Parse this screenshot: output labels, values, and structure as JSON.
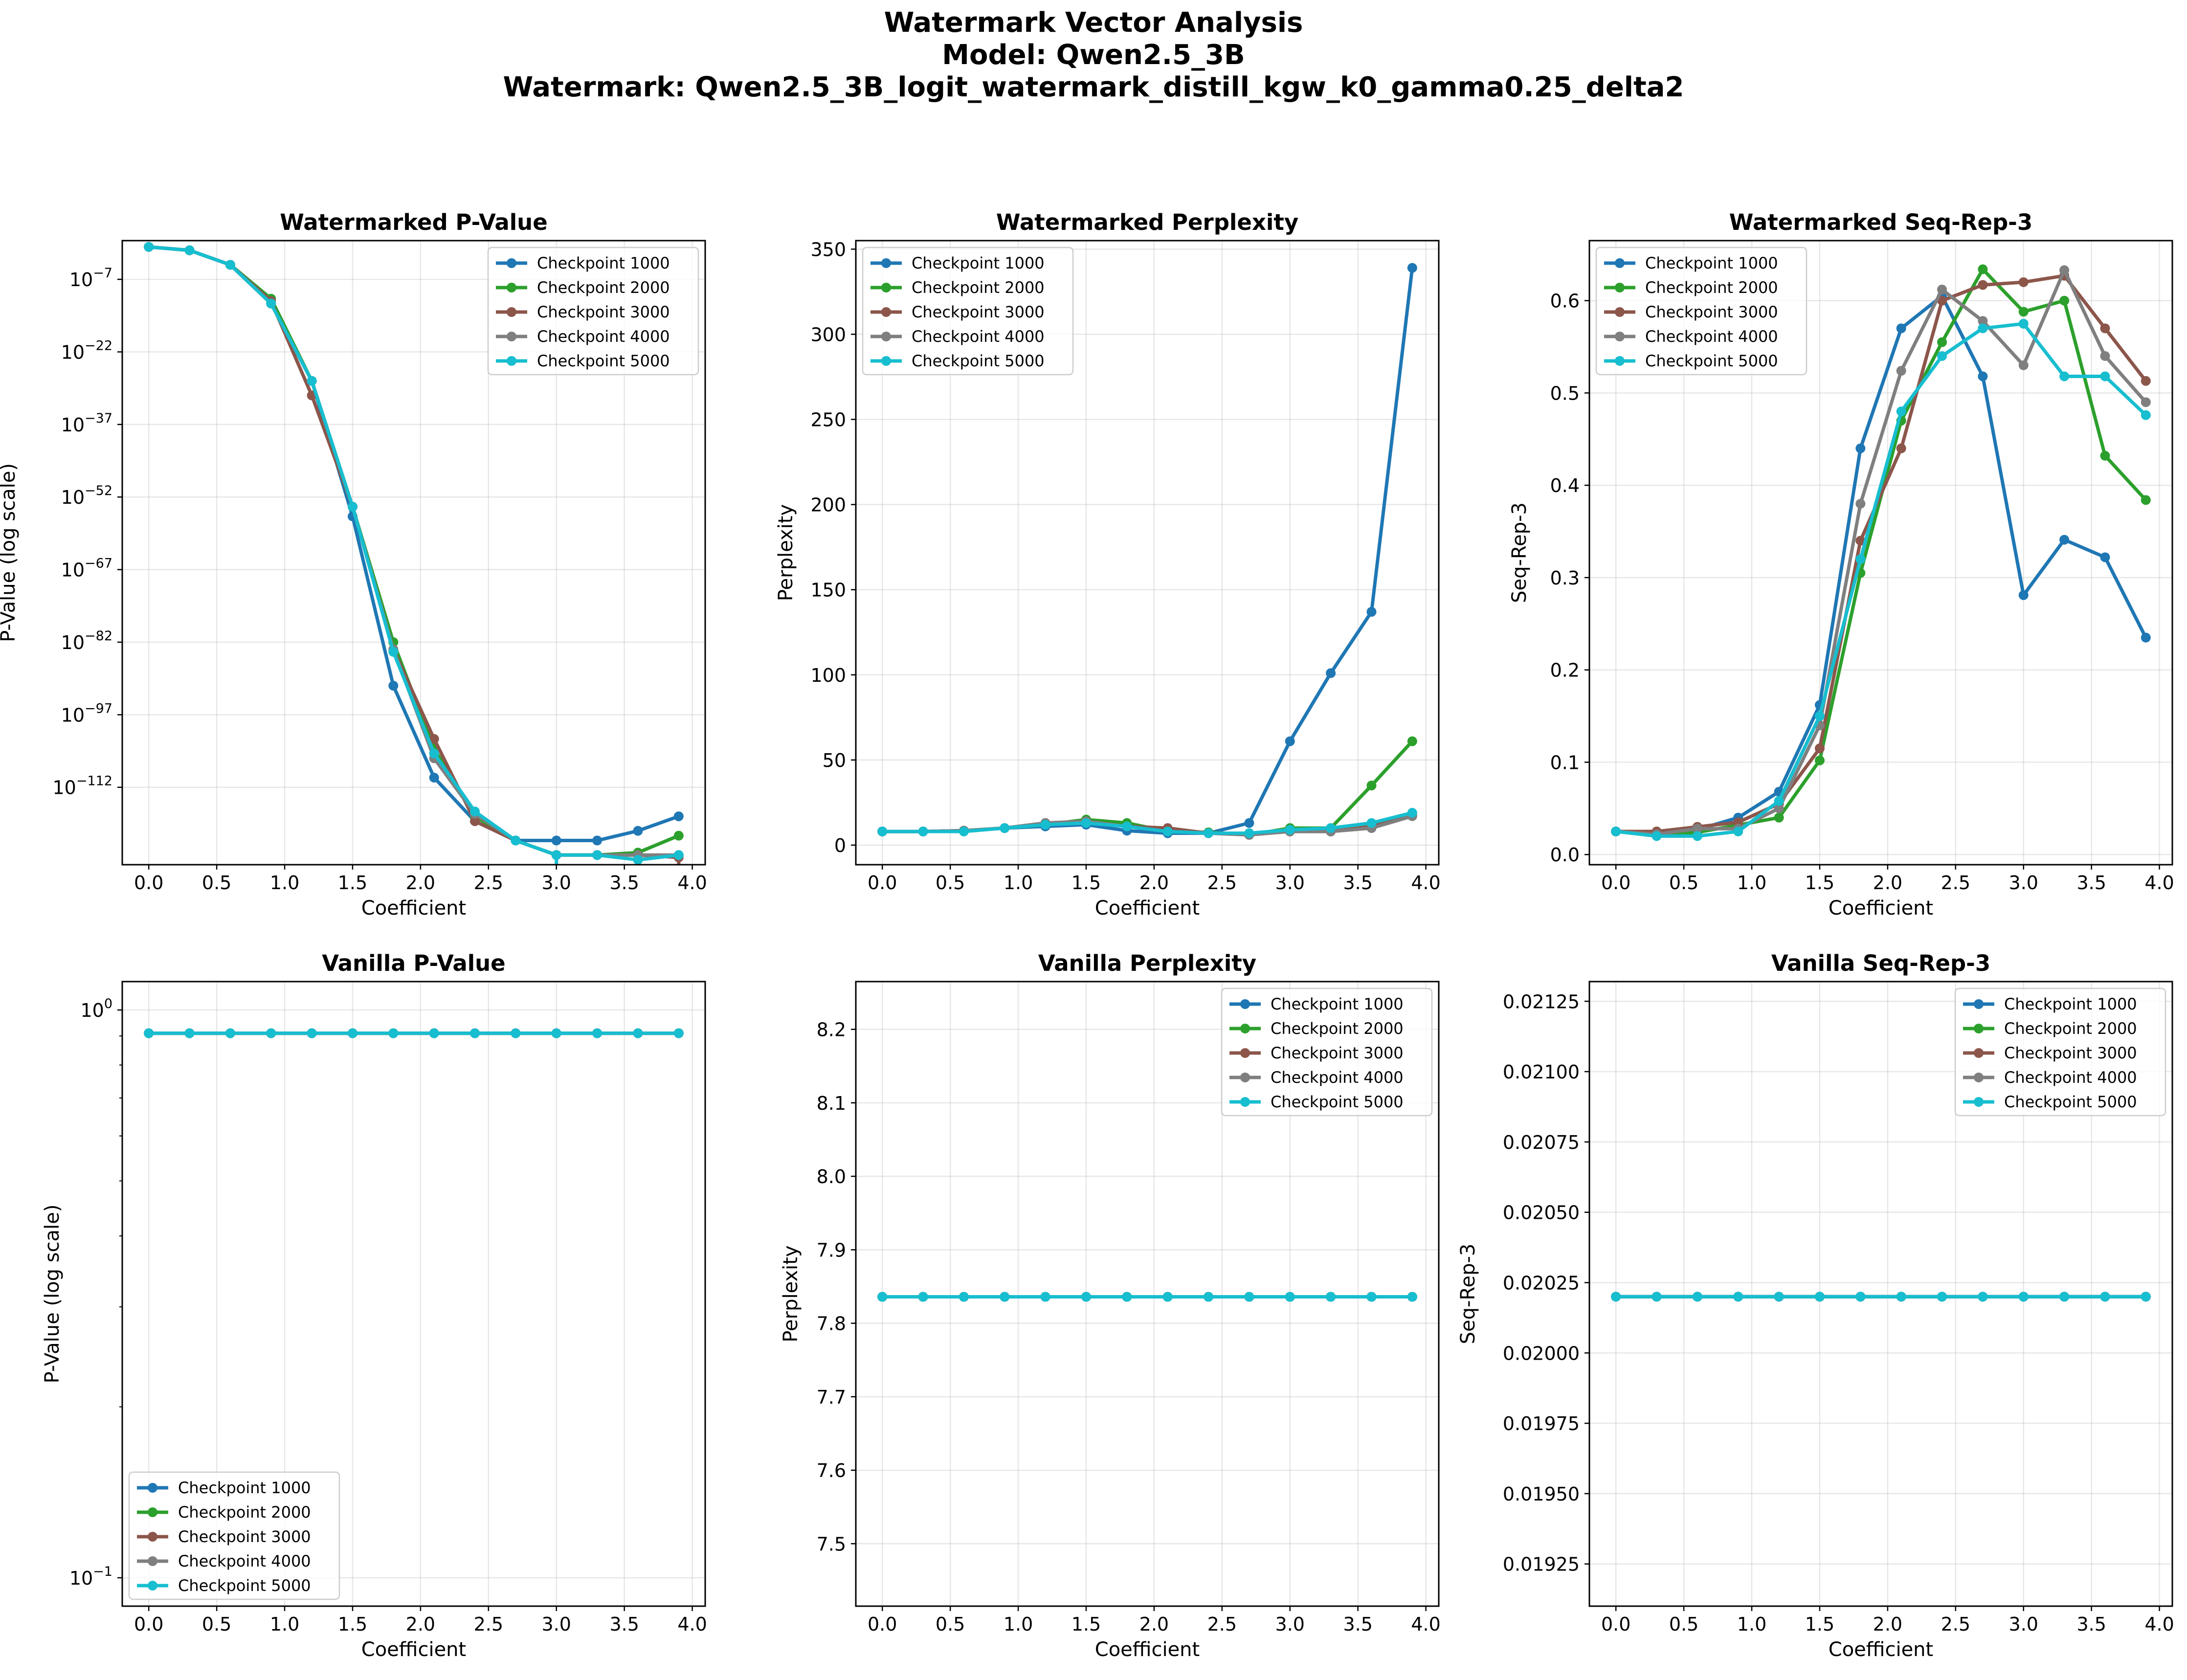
{
  "figure": {
    "title_lines": [
      "Watermark Vector Analysis",
      "Model: Qwen2.5_3B",
      "Watermark: Qwen2.5_3B_logit_watermark_distill_kgw_k0_gamma0.25_delta2"
    ]
  },
  "legend_labels": [
    "Checkpoint 1000",
    "Checkpoint 2000",
    "Checkpoint 3000",
    "Checkpoint 4000",
    "Checkpoint 5000"
  ],
  "series_colors": [
    "#1f77b4",
    "#2ca02c",
    "#8c564b",
    "#7f7f7f",
    "#17becf"
  ],
  "chart_data": [
    {
      "type": "line",
      "title": "Watermarked P-Value",
      "xlabel": "Coefficient",
      "ylabel": "P-Value (log scale)",
      "yscale": "log",
      "legend": "upper right",
      "grid": true,
      "xlim": [
        -0.195,
        4.095
      ],
      "xticks": [
        0.0,
        0.5,
        1.0,
        1.5,
        2.0,
        2.5,
        3.0,
        3.5,
        4.0
      ],
      "xticklabels": [
        "0.0",
        "0.5",
        "1.0",
        "1.5",
        "2.0",
        "2.5",
        "3.0",
        "3.5",
        "4.0"
      ],
      "ylim_log10": [
        -128,
        1
      ],
      "yticks_log10": [
        -7,
        -22,
        -37,
        -52,
        -67,
        -82,
        -97,
        -112
      ],
      "yticklabels": [
        {
          "base": "10",
          "exp": "−7"
        },
        {
          "base": "10",
          "exp": "−22"
        },
        {
          "base": "10",
          "exp": "−37"
        },
        {
          "base": "10",
          "exp": "−52"
        },
        {
          "base": "10",
          "exp": "−67"
        },
        {
          "base": "10",
          "exp": "−82"
        },
        {
          "base": "10",
          "exp": "−97"
        },
        {
          "base": "10",
          "exp": "−112"
        }
      ],
      "x": [
        0.0,
        0.3,
        0.6,
        0.9,
        1.2,
        1.5,
        1.8,
        2.1,
        2.4,
        2.7,
        3.0,
        3.3,
        3.6,
        3.9
      ],
      "series": [
        {
          "name": "Checkpoint 1000",
          "log10_values": [
            -0.3,
            -1.0,
            -4.0,
            -12.0,
            -28.0,
            -56.0,
            -91.0,
            -110.0,
            -119.0,
            -123.0,
            -123.0,
            -123.0,
            -121.0,
            -118.0
          ]
        },
        {
          "name": "Checkpoint 2000",
          "log10_values": [
            -0.3,
            -1.0,
            -4.0,
            -11.0,
            -28.0,
            -54.0,
            -82.0,
            -104.0,
            -118.0,
            -123.0,
            -126.0,
            -126.0,
            -125.5,
            -122.0
          ]
        },
        {
          "name": "Checkpoint 3000",
          "log10_values": [
            -0.3,
            -1.0,
            -4.0,
            -11.5,
            -31.0,
            -54.0,
            -83.5,
            -102.0,
            -119.0,
            -123.0,
            -126.0,
            -126.0,
            -126.0,
            -126.5
          ],
          "drop_last": true
        },
        {
          "name": "Checkpoint 4000",
          "log10_values": [
            -0.3,
            -1.0,
            -4.0,
            -12.0,
            -28.0,
            -54.0,
            -83.5,
            -106.0,
            -117.5,
            -123.0,
            -126.0,
            -126.0,
            -126.0,
            -126.0
          ]
        },
        {
          "name": "Checkpoint 5000",
          "log10_values": [
            -0.3,
            -1.0,
            -4.0,
            -12.0,
            -28.0,
            -54.0,
            -84.0,
            -105.0,
            -117.0,
            -123.0,
            -126.0,
            -126.0,
            -127.0,
            -126.0
          ],
          "drop_at": [
            3.0,
            3.6
          ]
        }
      ]
    },
    {
      "type": "line",
      "title": "Watermarked Perplexity",
      "xlabel": "Coefficient",
      "ylabel": "Perplexity",
      "yscale": "linear",
      "legend": "upper left",
      "grid": true,
      "xlim": [
        -0.195,
        4.095
      ],
      "xticks": [
        0.0,
        0.5,
        1.0,
        1.5,
        2.0,
        2.5,
        3.0,
        3.5,
        4.0
      ],
      "xticklabels": [
        "0.0",
        "0.5",
        "1.0",
        "1.5",
        "2.0",
        "2.5",
        "3.0",
        "3.5",
        "4.0"
      ],
      "ylim": [
        -11.5,
        355
      ],
      "yticks": [
        0,
        50,
        100,
        150,
        200,
        250,
        300,
        350
      ],
      "yticklabels": [
        "0",
        "50",
        "100",
        "150",
        "200",
        "250",
        "300",
        "350"
      ],
      "x": [
        0.0,
        0.3,
        0.6,
        0.9,
        1.2,
        1.5,
        1.8,
        2.1,
        2.4,
        2.7,
        3.0,
        3.3,
        3.6,
        3.9
      ],
      "series": [
        {
          "name": "Checkpoint 1000",
          "values": [
            8,
            8,
            8.5,
            10,
            11,
            12,
            8.5,
            7,
            7,
            13,
            61,
            101,
            137,
            339
          ]
        },
        {
          "name": "Checkpoint 2000",
          "values": [
            8,
            8,
            8.5,
            10,
            12,
            15,
            13,
            8,
            7.5,
            6,
            10,
            10,
            35,
            61
          ]
        },
        {
          "name": "Checkpoint 3000",
          "values": [
            8,
            8,
            8.5,
            10,
            13,
            14,
            11,
            10,
            7,
            6.5,
            8,
            8,
            11,
            18
          ]
        },
        {
          "name": "Checkpoint 4000",
          "values": [
            8,
            8,
            8.5,
            10,
            13,
            14,
            11,
            8,
            7,
            6,
            8,
            8,
            10,
            17
          ]
        },
        {
          "name": "Checkpoint 5000",
          "values": [
            8,
            8,
            8,
            10,
            12,
            13,
            11,
            8,
            7,
            7,
            9,
            10,
            13,
            19
          ]
        }
      ]
    },
    {
      "type": "line",
      "title": "Watermarked Seq-Rep-3",
      "xlabel": "Coefficient",
      "ylabel": "Seq-Rep-3",
      "yscale": "linear",
      "legend": "upper left",
      "grid": true,
      "xlim": [
        -0.195,
        4.095
      ],
      "xticks": [
        0.0,
        0.5,
        1.0,
        1.5,
        2.0,
        2.5,
        3.0,
        3.5,
        4.0
      ],
      "xticklabels": [
        "0.0",
        "0.5",
        "1.0",
        "1.5",
        "2.0",
        "2.5",
        "3.0",
        "3.5",
        "4.0"
      ],
      "ylim": [
        -0.011,
        0.665
      ],
      "yticks": [
        0.0,
        0.1,
        0.2,
        0.3,
        0.4,
        0.5,
        0.6
      ],
      "yticklabels": [
        "0.0",
        "0.1",
        "0.2",
        "0.3",
        "0.4",
        "0.5",
        "0.6"
      ],
      "x": [
        0.0,
        0.3,
        0.6,
        0.9,
        1.2,
        1.5,
        1.8,
        2.1,
        2.4,
        2.7,
        3.0,
        3.3,
        3.6,
        3.9
      ],
      "series": [
        {
          "name": "Checkpoint 1000",
          "values": [
            0.025,
            0.022,
            0.027,
            0.04,
            0.068,
            0.162,
            0.44,
            0.57,
            0.605,
            0.518,
            0.281,
            0.341,
            0.322,
            0.235
          ]
        },
        {
          "name": "Checkpoint 2000",
          "values": [
            0.025,
            0.022,
            0.024,
            0.032,
            0.04,
            0.102,
            0.305,
            0.47,
            0.555,
            0.634,
            0.588,
            0.6,
            0.432,
            0.384
          ]
        },
        {
          "name": "Checkpoint 3000",
          "values": [
            0.025,
            0.025,
            0.03,
            0.035,
            0.055,
            0.115,
            0.34,
            0.44,
            0.6,
            0.617,
            0.62,
            0.627,
            0.57,
            0.513
          ]
        },
        {
          "name": "Checkpoint 4000",
          "values": [
            0.025,
            0.022,
            0.028,
            0.028,
            0.05,
            0.14,
            0.38,
            0.524,
            0.612,
            0.578,
            0.53,
            0.633,
            0.54,
            0.49
          ]
        },
        {
          "name": "Checkpoint 5000",
          "values": [
            0.025,
            0.02,
            0.02,
            0.025,
            0.058,
            0.15,
            0.32,
            0.48,
            0.54,
            0.57,
            0.575,
            0.518,
            0.518,
            0.476
          ]
        }
      ]
    },
    {
      "type": "line",
      "title": "Vanilla P-Value",
      "xlabel": "Coefficient",
      "ylabel": "P-Value (log scale)",
      "yscale": "log",
      "legend": "lower left",
      "grid": true,
      "xlim": [
        -0.195,
        4.095
      ],
      "xticks": [
        0.0,
        0.5,
        1.0,
        1.5,
        2.0,
        2.5,
        3.0,
        3.5,
        4.0
      ],
      "xticklabels": [
        "0.0",
        "0.5",
        "1.0",
        "1.5",
        "2.0",
        "2.5",
        "3.0",
        "3.5",
        "4.0"
      ],
      "ylim_log10": [
        -1.05,
        0.05
      ],
      "yticks_log10": [
        0,
        -1
      ],
      "yticklabels": [
        {
          "base": "10",
          "exp": "0"
        },
        {
          "base": "10",
          "exp": "−1"
        }
      ],
      "x": [
        0.0,
        0.3,
        0.6,
        0.9,
        1.2,
        1.5,
        1.8,
        2.1,
        2.4,
        2.7,
        3.0,
        3.3,
        3.6,
        3.9
      ],
      "series": [
        {
          "name": "Checkpoint 1000",
          "values": [
            0.91,
            0.91,
            0.91,
            0.91,
            0.91,
            0.91,
            0.91,
            0.91,
            0.91,
            0.91,
            0.91,
            0.91,
            0.91,
            0.91
          ]
        },
        {
          "name": "Checkpoint 2000",
          "values": [
            0.91,
            0.91,
            0.91,
            0.91,
            0.91,
            0.91,
            0.91,
            0.91,
            0.91,
            0.91,
            0.91,
            0.91,
            0.91,
            0.91
          ]
        },
        {
          "name": "Checkpoint 3000",
          "values": [
            0.91,
            0.91,
            0.91,
            0.91,
            0.91,
            0.91,
            0.91,
            0.91,
            0.91,
            0.91,
            0.91,
            0.91,
            0.91,
            0.91
          ]
        },
        {
          "name": "Checkpoint 4000",
          "values": [
            0.91,
            0.91,
            0.91,
            0.91,
            0.91,
            0.91,
            0.91,
            0.91,
            0.91,
            0.91,
            0.91,
            0.91,
            0.91,
            0.91
          ]
        },
        {
          "name": "Checkpoint 5000",
          "values": [
            0.91,
            0.91,
            0.91,
            0.91,
            0.91,
            0.91,
            0.91,
            0.91,
            0.91,
            0.91,
            0.91,
            0.91,
            0.91,
            0.91
          ]
        }
      ]
    },
    {
      "type": "line",
      "title": "Vanilla Perplexity",
      "xlabel": "Coefficient",
      "ylabel": "Perplexity",
      "yscale": "linear",
      "legend": "upper right",
      "grid": true,
      "xlim": [
        -0.195,
        4.095
      ],
      "xticks": [
        0.0,
        0.5,
        1.0,
        1.5,
        2.0,
        2.5,
        3.0,
        3.5,
        4.0
      ],
      "xticklabels": [
        "0.0",
        "0.5",
        "1.0",
        "1.5",
        "2.0",
        "2.5",
        "3.0",
        "3.5",
        "4.0"
      ],
      "ylim": [
        7.415,
        8.265
      ],
      "yticks": [
        7.5,
        7.6,
        7.7,
        7.8,
        7.9,
        8.0,
        8.1,
        8.2
      ],
      "yticklabels": [
        "7.5",
        "7.6",
        "7.7",
        "7.8",
        "7.9",
        "8.0",
        "8.1",
        "8.2"
      ],
      "x": [
        0.0,
        0.3,
        0.6,
        0.9,
        1.2,
        1.5,
        1.8,
        2.1,
        2.4,
        2.7,
        3.0,
        3.3,
        3.6,
        3.9
      ],
      "series": [
        {
          "name": "Checkpoint 1000",
          "values": [
            7.836,
            7.836,
            7.836,
            7.836,
            7.836,
            7.836,
            7.836,
            7.836,
            7.836,
            7.836,
            7.836,
            7.836,
            7.836,
            7.836
          ]
        },
        {
          "name": "Checkpoint 2000",
          "values": [
            7.836,
            7.836,
            7.836,
            7.836,
            7.836,
            7.836,
            7.836,
            7.836,
            7.836,
            7.836,
            7.836,
            7.836,
            7.836,
            7.836
          ]
        },
        {
          "name": "Checkpoint 3000",
          "values": [
            7.836,
            7.836,
            7.836,
            7.836,
            7.836,
            7.836,
            7.836,
            7.836,
            7.836,
            7.836,
            7.836,
            7.836,
            7.836,
            7.836
          ]
        },
        {
          "name": "Checkpoint 4000",
          "values": [
            7.836,
            7.836,
            7.836,
            7.836,
            7.836,
            7.836,
            7.836,
            7.836,
            7.836,
            7.836,
            7.836,
            7.836,
            7.836,
            7.836
          ]
        },
        {
          "name": "Checkpoint 5000",
          "values": [
            7.836,
            7.836,
            7.836,
            7.836,
            7.836,
            7.836,
            7.836,
            7.836,
            7.836,
            7.836,
            7.836,
            7.836,
            7.836,
            7.836
          ]
        }
      ]
    },
    {
      "type": "line",
      "title": "Vanilla Seq-Rep-3",
      "xlabel": "Coefficient",
      "ylabel": "Seq-Rep-3",
      "yscale": "linear",
      "legend": "upper right",
      "grid": true,
      "xlim": [
        -0.195,
        4.095
      ],
      "xticks": [
        0.0,
        0.5,
        1.0,
        1.5,
        2.0,
        2.5,
        3.0,
        3.5,
        4.0
      ],
      "xticklabels": [
        "0.0",
        "0.5",
        "1.0",
        "1.5",
        "2.0",
        "2.5",
        "3.0",
        "3.5",
        "4.0"
      ],
      "ylim": [
        0.0191,
        0.02132
      ],
      "yticks": [
        0.01925,
        0.0195,
        0.01975,
        0.02,
        0.02025,
        0.0205,
        0.02075,
        0.021,
        0.02125
      ],
      "yticklabels": [
        "0.01925",
        "0.01950",
        "0.01975",
        "0.02000",
        "0.02025",
        "0.02050",
        "0.02075",
        "0.02100",
        "0.02125"
      ],
      "x": [
        0.0,
        0.3,
        0.6,
        0.9,
        1.2,
        1.5,
        1.8,
        2.1,
        2.4,
        2.7,
        3.0,
        3.3,
        3.6,
        3.9
      ],
      "series": [
        {
          "name": "Checkpoint 1000",
          "values": [
            0.0202,
            0.0202,
            0.0202,
            0.0202,
            0.0202,
            0.0202,
            0.0202,
            0.0202,
            0.0202,
            0.0202,
            0.0202,
            0.0202,
            0.0202,
            0.0202
          ]
        },
        {
          "name": "Checkpoint 2000",
          "values": [
            0.0202,
            0.0202,
            0.0202,
            0.0202,
            0.0202,
            0.0202,
            0.0202,
            0.0202,
            0.0202,
            0.0202,
            0.0202,
            0.0202,
            0.0202,
            0.0202
          ]
        },
        {
          "name": "Checkpoint 3000",
          "values": [
            0.0202,
            0.0202,
            0.0202,
            0.0202,
            0.0202,
            0.0202,
            0.0202,
            0.0202,
            0.0202,
            0.0202,
            0.0202,
            0.0202,
            0.0202,
            0.0202
          ]
        },
        {
          "name": "Checkpoint 4000",
          "values": [
            0.0202,
            0.0202,
            0.0202,
            0.0202,
            0.0202,
            0.0202,
            0.0202,
            0.0202,
            0.0202,
            0.0202,
            0.0202,
            0.0202,
            0.0202,
            0.0202
          ]
        },
        {
          "name": "Checkpoint 5000",
          "values": [
            0.0202,
            0.0202,
            0.0202,
            0.0202,
            0.0202,
            0.0202,
            0.0202,
            0.0202,
            0.0202,
            0.0202,
            0.0202,
            0.0202,
            0.0202,
            0.0202
          ]
        }
      ]
    }
  ]
}
